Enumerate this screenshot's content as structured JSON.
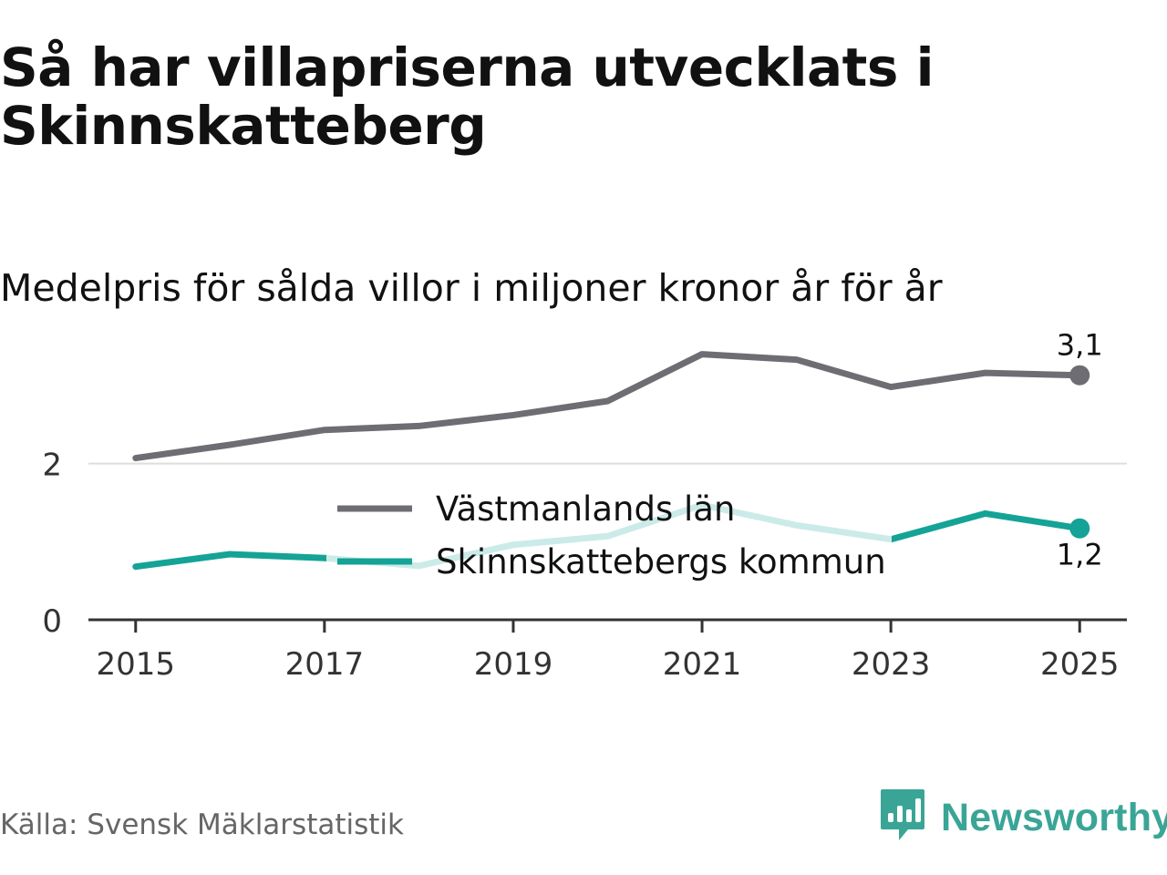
{
  "title": "Så har villapriserna utvecklats i Skinnskatteberg",
  "subtitle": "Medelpris för sålda villor i miljoner kronor år för år",
  "source": "Källa: Svensk Mäklarstatistik",
  "brand": {
    "name": "Newsworthy",
    "icon": "newsworthy-logo-icon",
    "color": "#3aa596"
  },
  "chart_data": {
    "type": "line",
    "title": "Så har villapriserna utvecklats i Skinnskatteberg",
    "subtitle": "Medelpris för sålda villor i miljoner kronor år för år",
    "xlabel": "",
    "ylabel": "",
    "x": [
      2015,
      2016,
      2017,
      2018,
      2019,
      2020,
      2021,
      2022,
      2023,
      2024,
      2025
    ],
    "xlim": [
      2014.5,
      2025.5
    ],
    "ylim": [
      0,
      3.5
    ],
    "xticks": [
      2015,
      2017,
      2019,
      2021,
      2023,
      2025
    ],
    "xtick_labels": [
      "2015",
      "2017",
      "2019",
      "2021",
      "2023",
      "2025"
    ],
    "yticks": [
      0,
      2
    ],
    "ytick_labels": [
      "0",
      "2"
    ],
    "grid": true,
    "legend_position": "top-center",
    "series": [
      {
        "name": "Västmanlands län",
        "color": "#6e6d74",
        "values": [
          2.07,
          2.24,
          2.43,
          2.48,
          2.62,
          2.8,
          3.4,
          3.33,
          2.98,
          3.16,
          3.13
        ],
        "end_label": "3,1"
      },
      {
        "name": "Skinnskattebergs kommun",
        "color": "#14a396",
        "values": [
          0.68,
          0.84,
          0.79,
          0.69,
          0.96,
          1.07,
          1.47,
          1.21,
          1.03,
          1.36,
          1.17
        ],
        "end_label": "1,2"
      }
    ]
  }
}
